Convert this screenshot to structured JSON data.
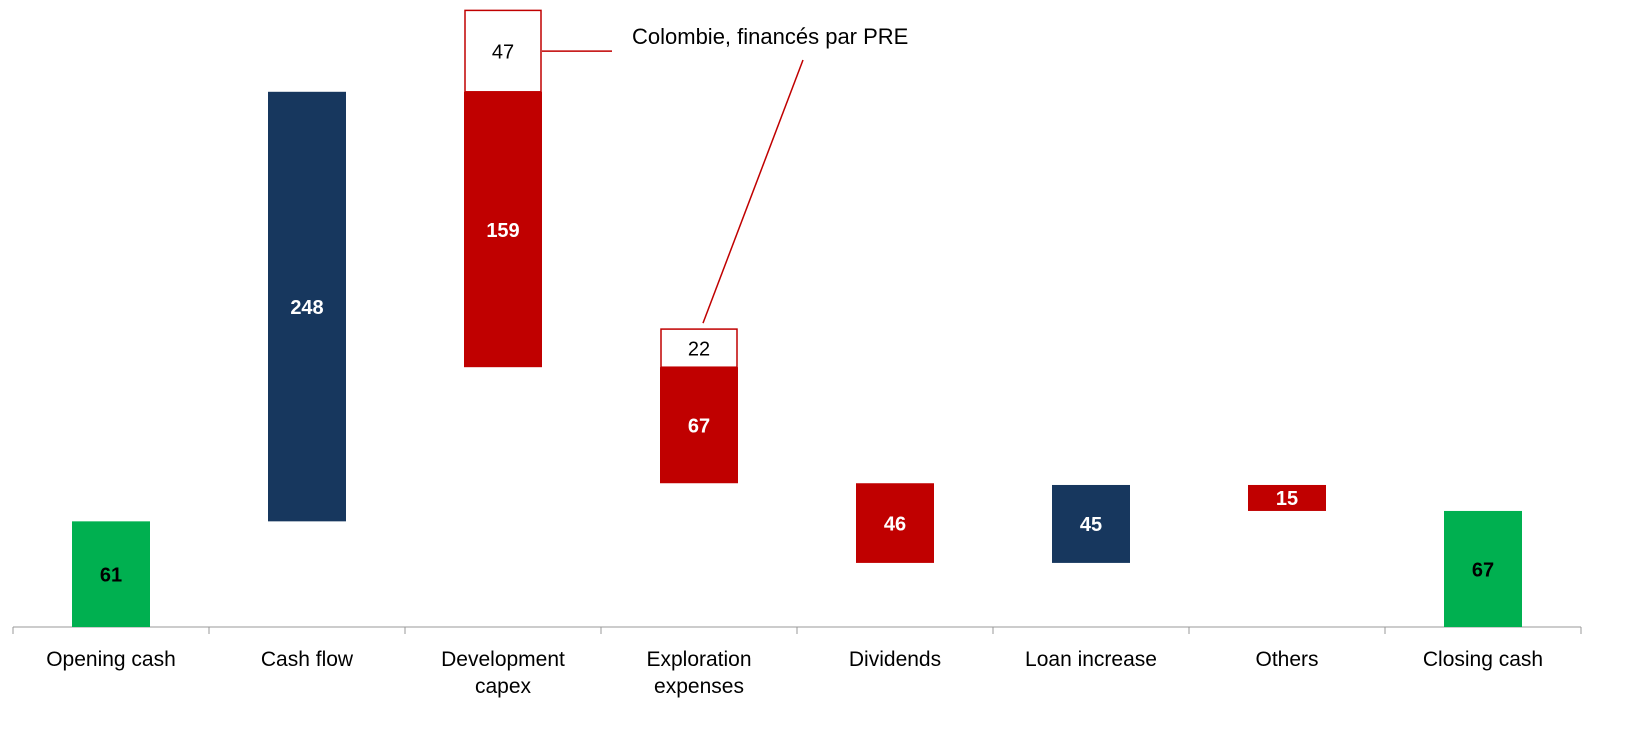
{
  "chart_data": {
    "type": "waterfall",
    "categories": [
      "Opening cash",
      "Cash flow",
      "Development capex",
      "Exploration expenses",
      "Dividends",
      "Loan increase",
      "Others",
      "Closing cash"
    ],
    "values": [
      61,
      248,
      159,
      67,
      46,
      45,
      15,
      67
    ],
    "measures": [
      "total",
      "increase",
      "decrease",
      "decrease",
      "decrease",
      "increase",
      "decrease",
      "total"
    ],
    "colors": [
      "#00b050",
      "#17375e",
      "#c00000",
      "#c00000",
      "#c00000",
      "#17375e",
      "#c00000",
      "#00b050"
    ],
    "label_colors": [
      "#000000",
      "#ffffff",
      "#ffffff",
      "#ffffff",
      "#ffffff",
      "#ffffff",
      "#ffffff",
      "#000000"
    ],
    "funded": {
      "name": "Colombie, financés par PRE",
      "color": "#c00000",
      "values": [
        null,
        null,
        47,
        22,
        null,
        null,
        null,
        null
      ]
    },
    "ylim": [
      0,
      362
    ]
  }
}
